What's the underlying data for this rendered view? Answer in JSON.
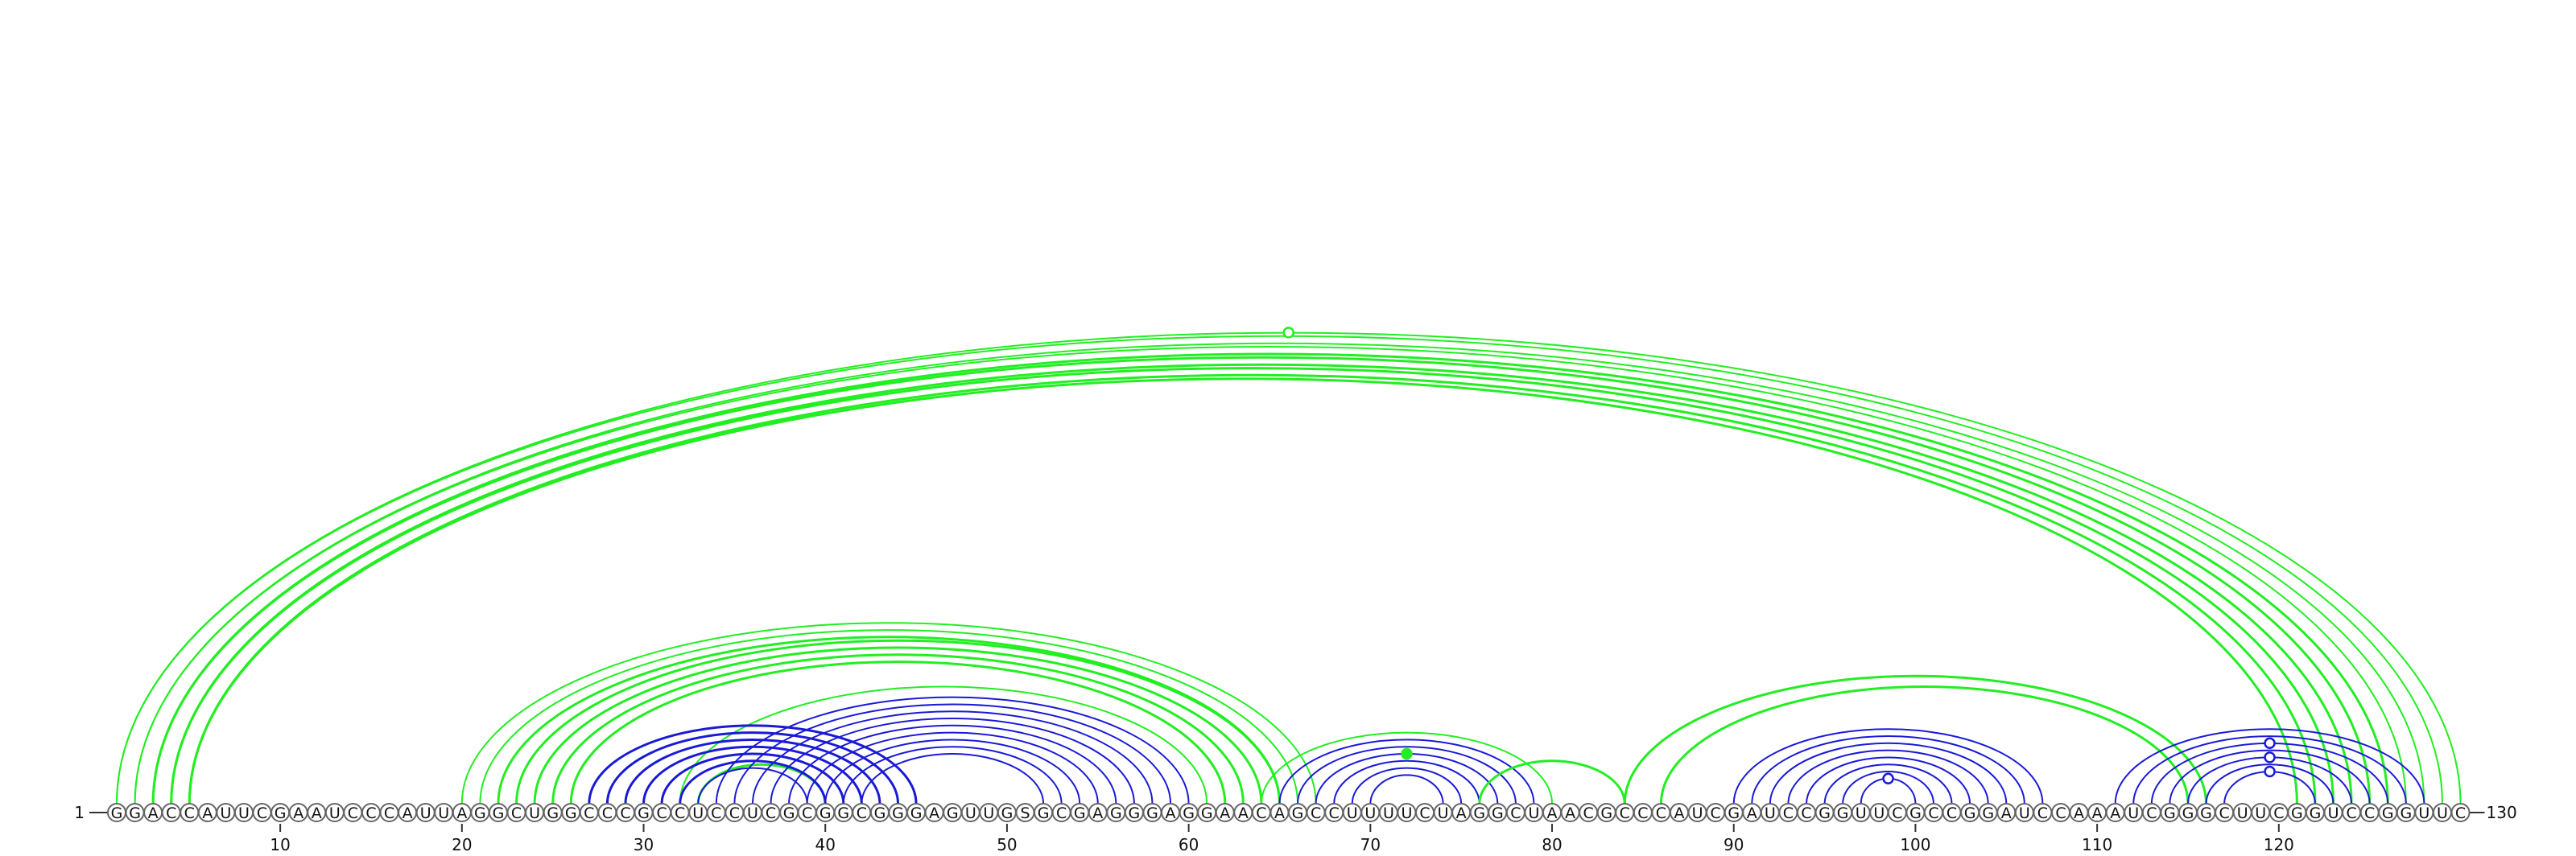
{
  "sequence": "GGACCAUUCGAAUCCCAUUAGGCUGGCCCGCCUCCUCGCGGCGGGAGUUGSGCGAGGGAGGAACAGCCUUUUCUAGGCUAACGCCCAUCGAUCCGGUUCGCCGGAUCCAAAUCGGGCUUCGGUCCGGUUC",
  "start_label": "1",
  "end_label": "130",
  "ticks": [
    "10",
    "20",
    "30",
    "40",
    "50",
    "60",
    "70",
    "80",
    "90",
    "100",
    "110",
    "120"
  ],
  "colors": {
    "green": "#22ee22",
    "blue": "#1a1ad6"
  },
  "arcs": [
    {
      "i": 1,
      "j": 130,
      "color": "green",
      "w": 2
    },
    {
      "i": 1,
      "j": 129,
      "color": "green",
      "w": 2
    },
    {
      "i": 2,
      "j": 128,
      "color": "green",
      "w": 2
    },
    {
      "i": 2,
      "j": 127,
      "color": "green",
      "w": 2
    },
    {
      "i": 3,
      "j": 126,
      "color": "green",
      "w": 3
    },
    {
      "i": 3,
      "j": 125,
      "color": "green",
      "w": 3
    },
    {
      "i": 4,
      "j": 124,
      "color": "green",
      "w": 3
    },
    {
      "i": 4,
      "j": 123,
      "color": "green",
      "w": 3
    },
    {
      "i": 5,
      "j": 122,
      "color": "green",
      "w": 3
    },
    {
      "i": 5,
      "j": 121,
      "color": "green",
      "w": 3
    },
    {
      "i": 20,
      "j": 67,
      "color": "green",
      "w": 2
    },
    {
      "i": 21,
      "j": 66,
      "color": "green",
      "w": 2
    },
    {
      "i": 22,
      "j": 65,
      "color": "green",
      "w": 3
    },
    {
      "i": 23,
      "j": 65,
      "color": "green",
      "w": 3
    },
    {
      "i": 24,
      "j": 64,
      "color": "green",
      "w": 3
    },
    {
      "i": 25,
      "j": 63,
      "color": "green",
      "w": 3
    },
    {
      "i": 26,
      "j": 62,
      "color": "green",
      "w": 3
    },
    {
      "i": 32,
      "j": 61,
      "color": "green",
      "w": 2
    },
    {
      "i": 33,
      "j": 40,
      "color": "green",
      "w": 3
    },
    {
      "i": 27,
      "j": 45,
      "color": "blue",
      "w": 3
    },
    {
      "i": 28,
      "j": 44,
      "color": "blue",
      "w": 3
    },
    {
      "i": 29,
      "j": 43,
      "color": "blue",
      "w": 3
    },
    {
      "i": 30,
      "j": 42,
      "color": "blue",
      "w": 3
    },
    {
      "i": 31,
      "j": 41,
      "color": "blue",
      "w": 3
    },
    {
      "i": 32,
      "j": 40,
      "color": "blue",
      "w": 3
    },
    {
      "i": 33,
      "j": 39,
      "color": "blue",
      "w": 2
    },
    {
      "i": 34,
      "j": 60,
      "color": "blue",
      "w": 2
    },
    {
      "i": 35,
      "j": 59,
      "color": "blue",
      "w": 2
    },
    {
      "i": 36,
      "j": 58,
      "color": "blue",
      "w": 2
    },
    {
      "i": 37,
      "j": 57,
      "color": "blue",
      "w": 2
    },
    {
      "i": 38,
      "j": 56,
      "color": "blue",
      "w": 2
    },
    {
      "i": 39,
      "j": 55,
      "color": "blue",
      "w": 2
    },
    {
      "i": 40,
      "j": 54,
      "color": "blue",
      "w": 2
    },
    {
      "i": 41,
      "j": 53,
      "color": "blue",
      "w": 2
    },
    {
      "i": 42,
      "j": 52,
      "color": "blue",
      "w": 2
    },
    {
      "i": 64,
      "j": 80,
      "color": "green",
      "w": 2
    },
    {
      "i": 65,
      "j": 79,
      "color": "blue",
      "w": 2
    },
    {
      "i": 66,
      "j": 78,
      "color": "blue",
      "w": 2
    },
    {
      "i": 67,
      "j": 77,
      "color": "blue",
      "w": 2
    },
    {
      "i": 68,
      "j": 76,
      "color": "blue",
      "w": 2
    },
    {
      "i": 69,
      "j": 75,
      "color": "blue",
      "w": 2
    },
    {
      "i": 70,
      "j": 74,
      "color": "blue",
      "w": 2
    },
    {
      "i": 76,
      "j": 84,
      "color": "green",
      "w": 3
    },
    {
      "i": 84,
      "j": 116,
      "color": "green",
      "w": 3
    },
    {
      "i": 86,
      "j": 115,
      "color": "green",
      "w": 3
    },
    {
      "i": 90,
      "j": 107,
      "color": "blue",
      "w": 2
    },
    {
      "i": 91,
      "j": 106,
      "color": "blue",
      "w": 2
    },
    {
      "i": 92,
      "j": 105,
      "color": "blue",
      "w": 2
    },
    {
      "i": 93,
      "j": 104,
      "color": "blue",
      "w": 2
    },
    {
      "i": 94,
      "j": 103,
      "color": "blue",
      "w": 2
    },
    {
      "i": 95,
      "j": 102,
      "color": "blue",
      "w": 2
    },
    {
      "i": 96,
      "j": 101,
      "color": "blue",
      "w": 2
    },
    {
      "i": 97,
      "j": 100,
      "color": "blue",
      "w": 2
    },
    {
      "i": 111,
      "j": 128,
      "color": "blue",
      "w": 2
    },
    {
      "i": 112,
      "j": 127,
      "color": "blue",
      "w": 2
    },
    {
      "i": 113,
      "j": 126,
      "color": "blue",
      "w": 2
    },
    {
      "i": 114,
      "j": 125,
      "color": "blue",
      "w": 2
    },
    {
      "i": 115,
      "j": 124,
      "color": "blue",
      "w": 2
    },
    {
      "i": 116,
      "j": 123,
      "color": "blue",
      "w": 2
    },
    {
      "i": 117,
      "j": 122,
      "color": "blue",
      "w": 2
    }
  ],
  "markers": [
    {
      "pos": 65.5,
      "arc": 0,
      "color": "green",
      "filled": false
    },
    {
      "pos": 72,
      "arc": 34,
      "color": "green",
      "filled": true
    },
    {
      "pos": 98.5,
      "arc": 52,
      "color": "blue",
      "filled": false
    },
    {
      "pos": 119.5,
      "arc": 55,
      "color": "blue",
      "filled": false
    },
    {
      "pos": 119.5,
      "arc": 57,
      "color": "blue",
      "filled": false
    },
    {
      "pos": 119.5,
      "arc": 59,
      "color": "blue",
      "filled": false
    }
  ]
}
